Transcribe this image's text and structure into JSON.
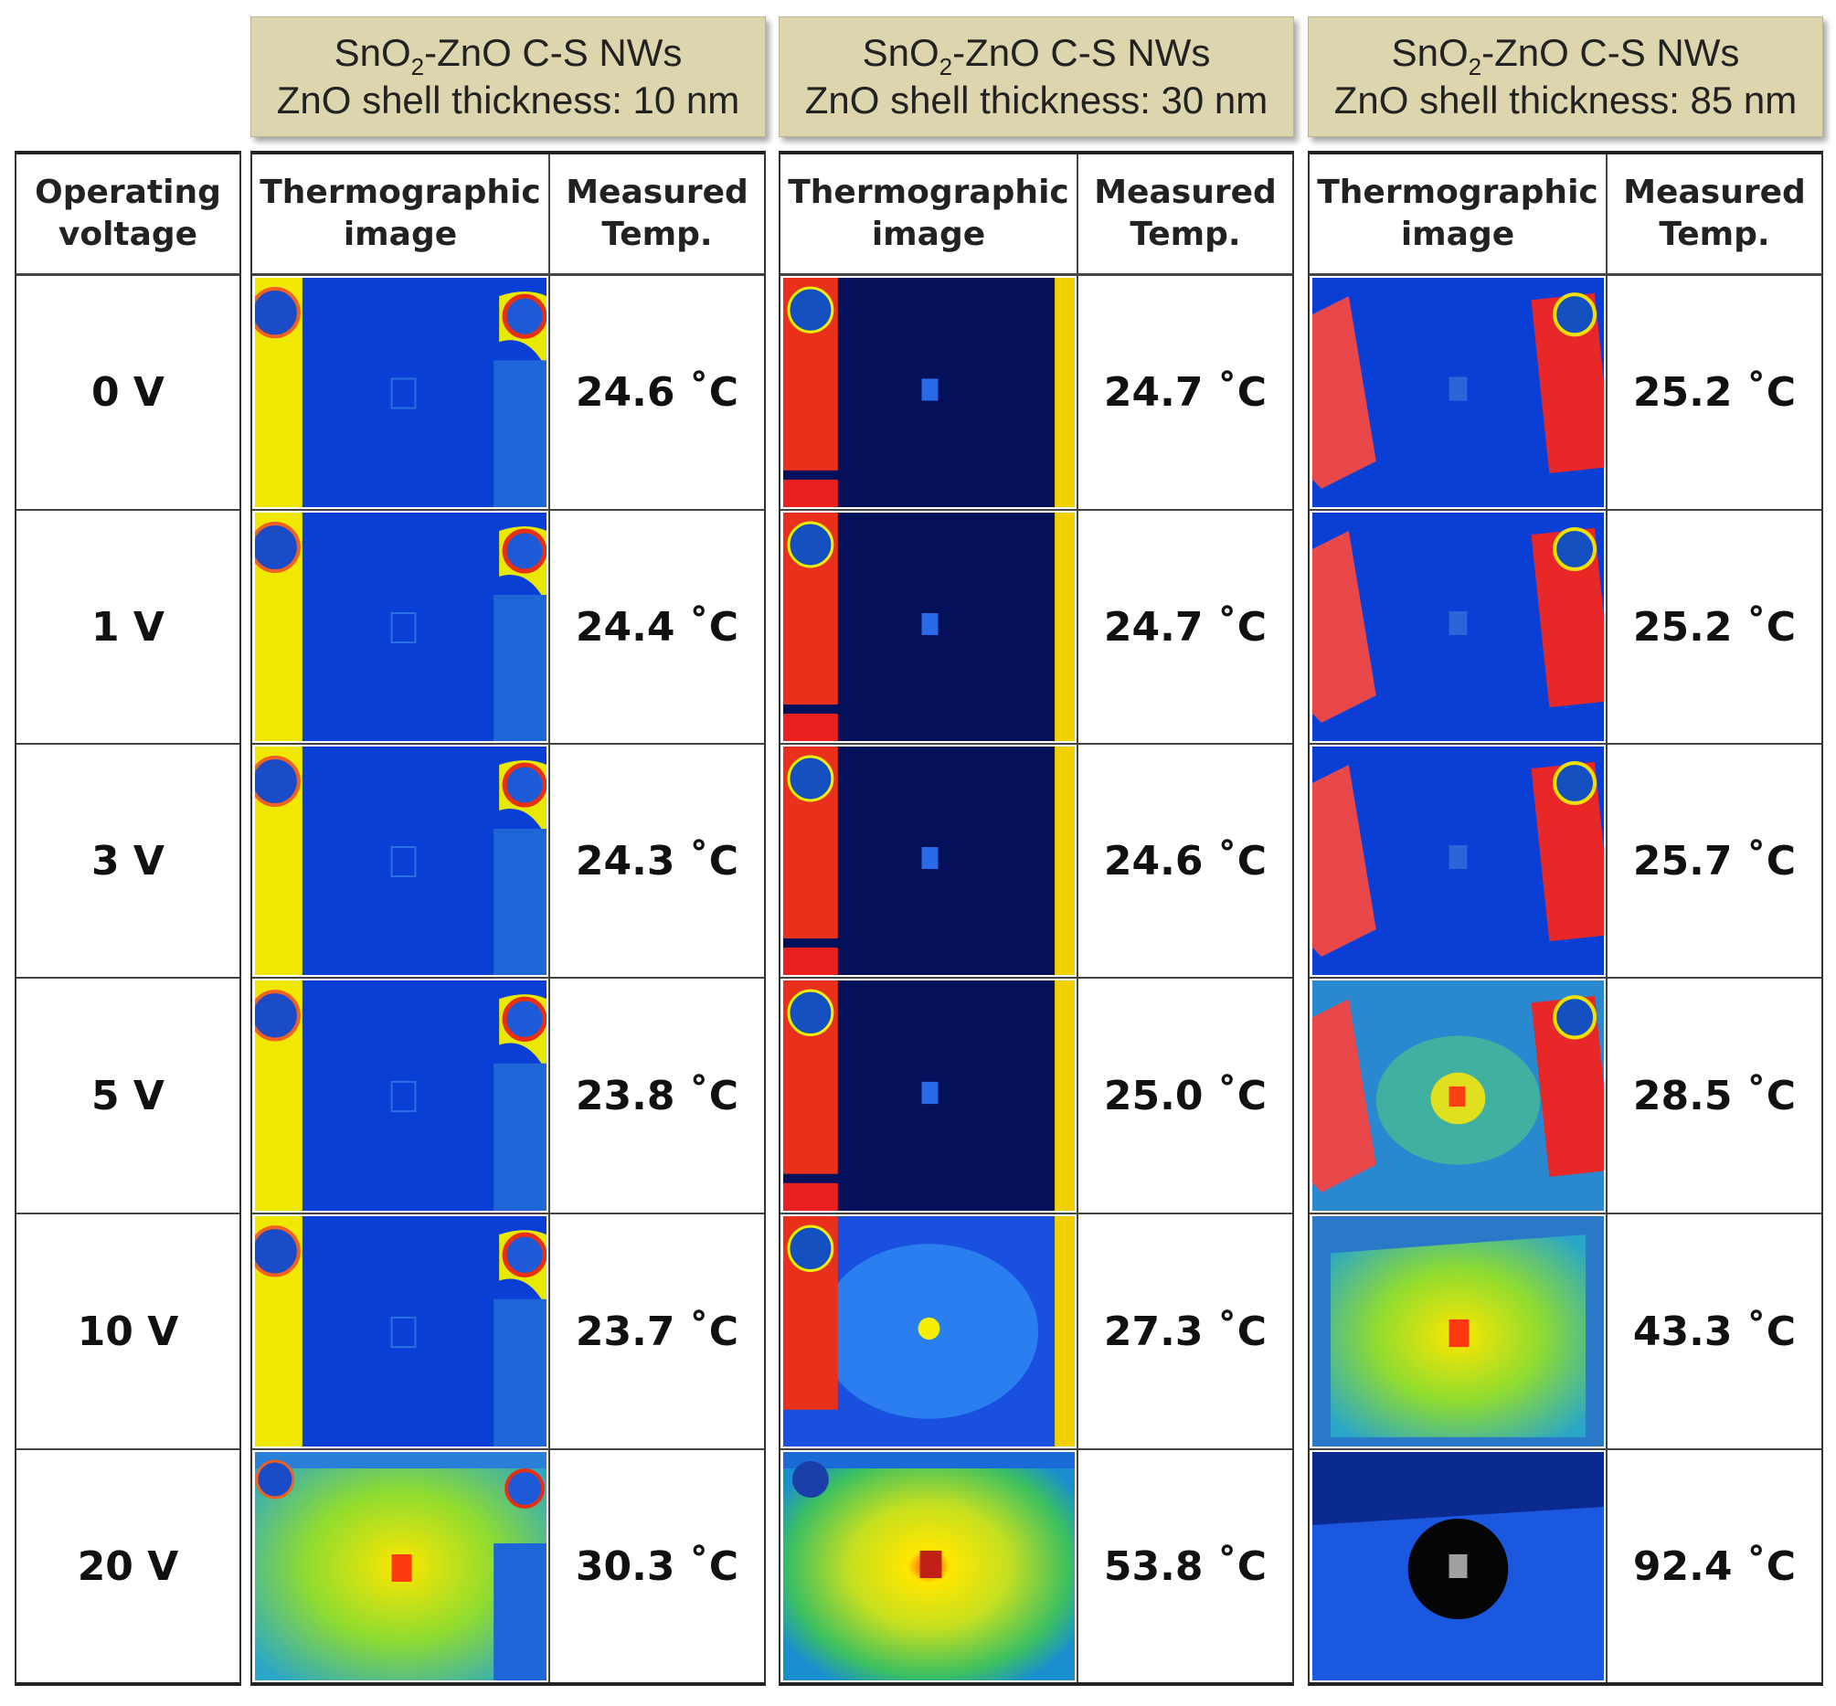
{
  "groups": [
    {
      "title_pre": "SnO",
      "title_sub": "2",
      "title_post": "-ZnO C-S NWs",
      "subtitle": "ZnO shell thickness: 10 nm",
      "temps": [
        "24.6 ˚C",
        "24.4 ˚C",
        "24.3 ˚C",
        "23.8 ˚C",
        "23.7 ˚C",
        "30.3 ˚C"
      ]
    },
    {
      "title_pre": "SnO",
      "title_sub": "2",
      "title_post": "-ZnO C-S NWs",
      "subtitle": "ZnO shell thickness: 30 nm",
      "temps": [
        "24.7 ˚C",
        "24.7 ˚C",
        "24.6 ˚C",
        "25.0 ˚C",
        "27.3 ˚C",
        "53.8 ˚C"
      ]
    },
    {
      "title_pre": "SnO",
      "title_sub": "2",
      "title_post": "-ZnO C-S NWs",
      "subtitle": "ZnO shell thickness: 85 nm",
      "temps": [
        "25.2 ˚C",
        "25.2 ˚C",
        "25.7 ˚C",
        "28.5 ˚C",
        "43.3 ˚C",
        "92.4 ˚C"
      ]
    }
  ],
  "table_headers": {
    "voltage_line1": "Operating",
    "voltage_line2": "voltage",
    "image_line1": "Thermographic",
    "image_line2": "image",
    "temp_line1": "Measured",
    "temp_line2": "Temp."
  },
  "voltages": [
    "0 V",
    "1 V",
    "3 V",
    "5 V",
    "10 V",
    "20 V"
  ],
  "colors": {
    "header_bg": "#ddd5ad",
    "thermo_blue": "#0a3fd6",
    "thermo_dark": "#05105a",
    "thermo_yellow": "#f0e800",
    "thermo_red": "#e8301a"
  }
}
